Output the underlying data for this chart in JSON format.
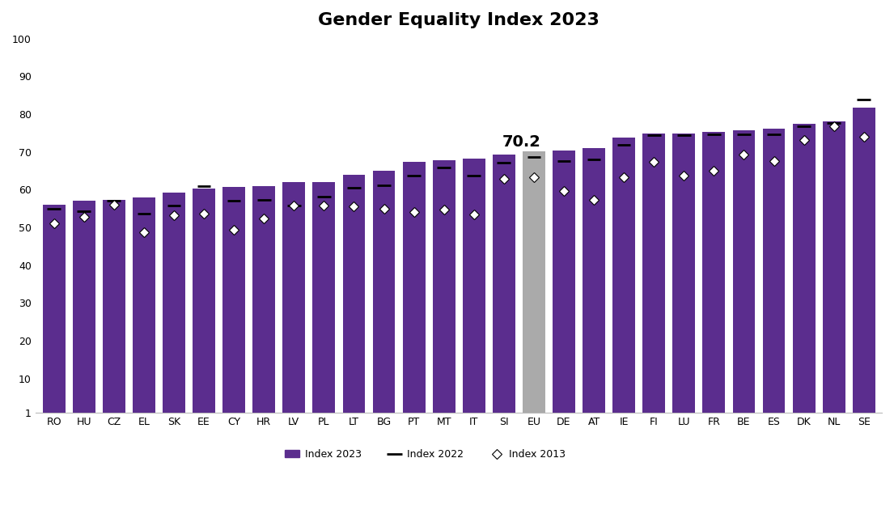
{
  "title": "Gender Equality Index 2023",
  "categories": [
    "RO",
    "HU",
    "CZ",
    "EL",
    "SK",
    "EE",
    "CY",
    "HR",
    "LV",
    "PL",
    "LT",
    "BG",
    "PT",
    "MT",
    "IT",
    "SI",
    "EU",
    "DE",
    "AT",
    "IE",
    "FI",
    "LU",
    "FR",
    "BE",
    "ES",
    "DK",
    "NL",
    "SE"
  ],
  "index2023": [
    56.0,
    57.1,
    57.4,
    57.9,
    59.2,
    60.4,
    60.7,
    61.0,
    62.0,
    62.1,
    64.0,
    65.0,
    67.4,
    67.9,
    68.2,
    69.4,
    70.2,
    70.4,
    71.1,
    73.8,
    74.8,
    74.8,
    75.4,
    75.7,
    76.2,
    77.5,
    78.0,
    81.8
  ],
  "index2022": [
    54.9,
    54.4,
    57.1,
    53.7,
    55.9,
    61.0,
    57.1,
    57.4,
    55.8,
    58.1,
    60.5,
    61.1,
    63.7,
    65.8,
    63.7,
    67.2,
    68.6,
    67.6,
    68.1,
    71.9,
    74.5,
    74.5,
    74.6,
    74.6,
    74.7,
    76.8,
    77.6,
    83.9
  ],
  "index2013": [
    51.0,
    52.9,
    56.0,
    48.8,
    53.3,
    53.6,
    49.4,
    52.4,
    55.7,
    55.8,
    55.5,
    54.9,
    54.1,
    54.7,
    53.4,
    62.9,
    63.2,
    59.6,
    57.3,
    63.3,
    67.4,
    63.8,
    65.0,
    69.3,
    67.5,
    73.2,
    76.7,
    74.0
  ],
  "bar_colors": [
    "#5b2d8e",
    "#5b2d8e",
    "#5b2d8e",
    "#5b2d8e",
    "#5b2d8e",
    "#5b2d8e",
    "#5b2d8e",
    "#5b2d8e",
    "#5b2d8e",
    "#5b2d8e",
    "#5b2d8e",
    "#5b2d8e",
    "#5b2d8e",
    "#5b2d8e",
    "#5b2d8e",
    "#5b2d8e",
    "#aaaaaa",
    "#5b2d8e",
    "#5b2d8e",
    "#5b2d8e",
    "#5b2d8e",
    "#5b2d8e",
    "#5b2d8e",
    "#5b2d8e",
    "#5b2d8e",
    "#5b2d8e",
    "#5b2d8e",
    "#5b2d8e"
  ],
  "eu_label": "70.2",
  "eu_index": 16,
  "bar_bottom": 1,
  "ylim_min": 1,
  "ylim_max": 100,
  "yticks": [
    1,
    10,
    20,
    30,
    40,
    50,
    60,
    70,
    80,
    90,
    100
  ],
  "background_color": "#ffffff",
  "bar_width": 0.75
}
